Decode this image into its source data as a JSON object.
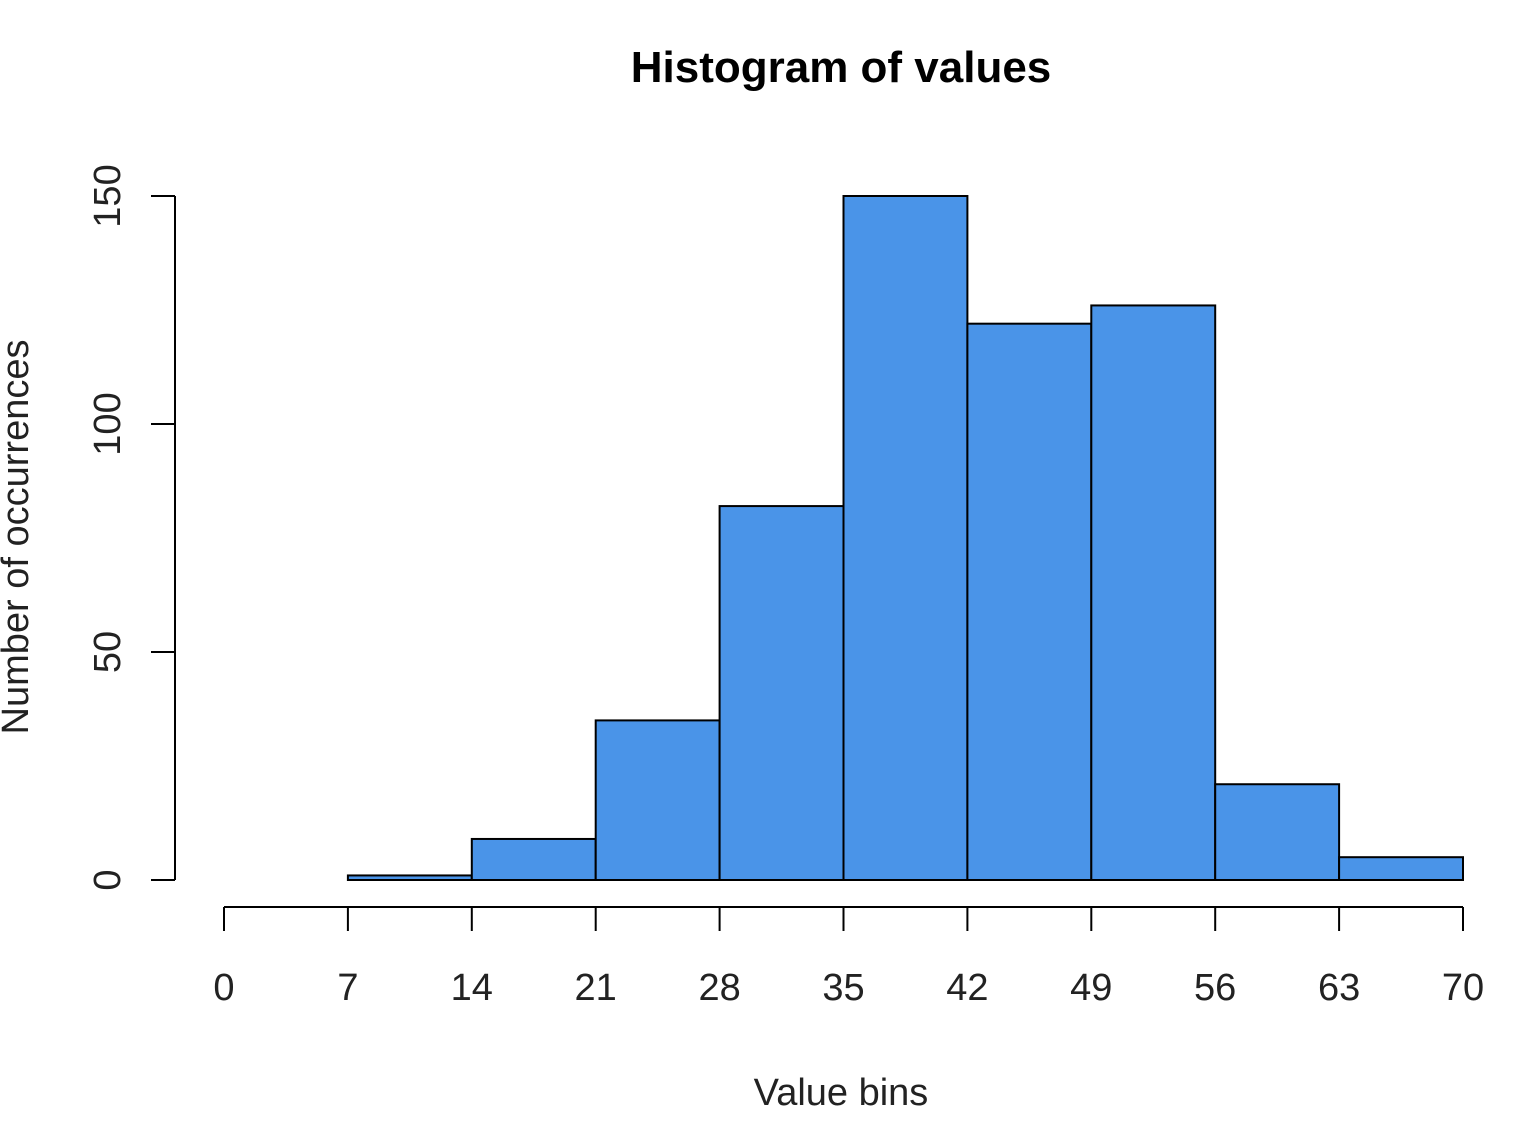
{
  "chart_data": {
    "type": "bar",
    "title": "Histogram of values",
    "xlabel": "Value bins",
    "ylabel": "Number of occurrences",
    "bin_edges": [
      0,
      7,
      14,
      21,
      28,
      35,
      42,
      49,
      56,
      63,
      70
    ],
    "values": [
      0,
      1,
      9,
      35,
      82,
      150,
      122,
      126,
      21,
      5
    ],
    "x_ticks": [
      0,
      7,
      14,
      21,
      28,
      35,
      42,
      49,
      56,
      63,
      70
    ],
    "y_ticks": [
      0,
      50,
      100,
      150
    ],
    "xlim": [
      0,
      70
    ],
    "ylim": [
      0,
      150
    ],
    "grid": false,
    "bar_color": "#4a94e8"
  }
}
